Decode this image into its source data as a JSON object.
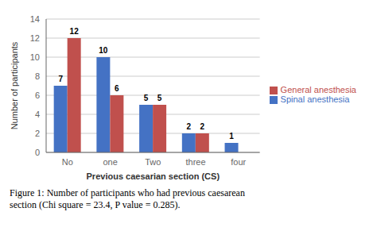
{
  "chart_data": {
    "type": "bar",
    "categories": [
      "No",
      "one",
      "Two",
      "three",
      "four"
    ],
    "series": [
      {
        "name": "Spinal anesthesia",
        "color": "#4472C4",
        "values": [
          7,
          10,
          5,
          2,
          1
        ]
      },
      {
        "name": "General anesthesia",
        "color": "#C0504D",
        "values": [
          12,
          6,
          5,
          2,
          0
        ]
      }
    ],
    "xlabel": "Previous caesarian section (CS)",
    "ylabel": "Number of participants",
    "ylim": [
      0,
      14
    ],
    "yticks": [
      0,
      2,
      4,
      6,
      8,
      10,
      12,
      14
    ],
    "grid": true,
    "legend": "right",
    "data_labels": true,
    "annotations": [
      "Figure 1: Number of participants who had previous caesarean",
      "section (Chi square = 23.4, P value = 0.285)."
    ]
  }
}
